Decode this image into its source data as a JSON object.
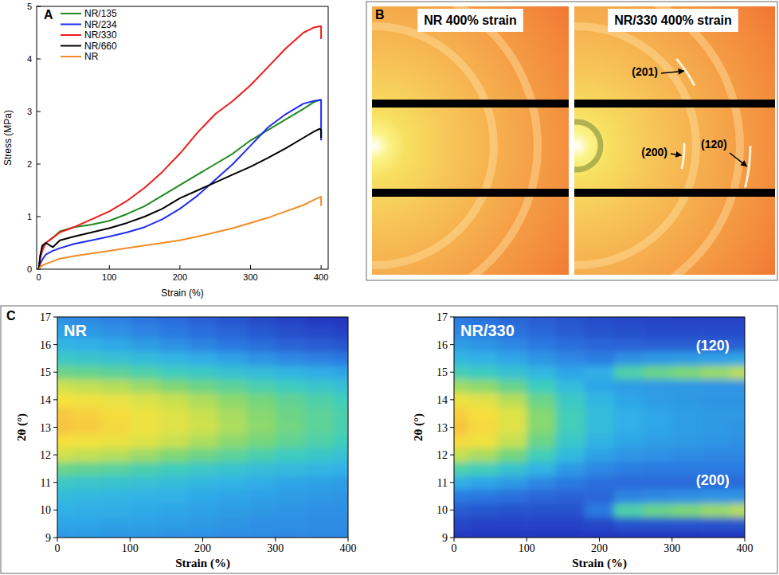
{
  "chart_data": [
    {
      "type": "line",
      "panel_label": "A",
      "x": [
        0,
        2,
        5,
        10,
        20,
        30,
        50,
        75,
        100,
        125,
        150,
        175,
        200,
        225,
        250,
        275,
        300,
        325,
        350,
        375,
        390,
        398,
        400,
        400
      ],
      "xlim": [
        -3,
        410
      ],
      "xticks": [
        0,
        100,
        200,
        300,
        400
      ],
      "ylim": [
        0,
        5
      ],
      "yticks": [
        0,
        1,
        2,
        3,
        4,
        5
      ],
      "x_label": "Strain (%)",
      "y_label": "Stress (MPa)",
      "legend": "upper left",
      "series": [
        {
          "name": "NR/135",
          "color": "#1f8a1f",
          "values": [
            0,
            0.25,
            0.4,
            0.5,
            0.6,
            0.72,
            0.8,
            0.85,
            0.92,
            1.05,
            1.2,
            1.4,
            1.6,
            1.8,
            2.0,
            2.2,
            2.45,
            2.65,
            2.85,
            3.05,
            3.18,
            3.22,
            3.22,
            3.2
          ]
        },
        {
          "name": "NR/234",
          "color": "#1f2cf0",
          "values": [
            0,
            0.1,
            0.18,
            0.28,
            0.35,
            0.4,
            0.48,
            0.55,
            0.62,
            0.7,
            0.8,
            0.95,
            1.15,
            1.4,
            1.7,
            2.0,
            2.35,
            2.7,
            2.95,
            3.15,
            3.2,
            3.22,
            3.22,
            2.45
          ]
        },
        {
          "name": "NR/330",
          "color": "#ee1c1c",
          "values": [
            0,
            0.2,
            0.35,
            0.5,
            0.6,
            0.7,
            0.8,
            0.95,
            1.1,
            1.3,
            1.55,
            1.85,
            2.2,
            2.6,
            2.95,
            3.2,
            3.5,
            3.85,
            4.2,
            4.5,
            4.6,
            4.62,
            4.62,
            4.38
          ]
        },
        {
          "name": "NR/660",
          "color": "#000000",
          "values": [
            0,
            0.25,
            0.45,
            0.5,
            0.42,
            0.55,
            0.62,
            0.7,
            0.78,
            0.88,
            1.0,
            1.15,
            1.35,
            1.5,
            1.65,
            1.8,
            1.95,
            2.12,
            2.3,
            2.5,
            2.62,
            2.67,
            2.65,
            2.5
          ]
        },
        {
          "name": "NR",
          "color": "#f28c28",
          "values": [
            0,
            0.04,
            0.07,
            0.1,
            0.15,
            0.2,
            0.25,
            0.3,
            0.35,
            0.4,
            0.45,
            0.5,
            0.55,
            0.62,
            0.7,
            0.78,
            0.88,
            0.98,
            1.1,
            1.22,
            1.32,
            1.37,
            1.38,
            1.2
          ]
        }
      ]
    },
    {
      "type": "heatmap",
      "panel_label": "C",
      "title": "NR",
      "x": [
        0,
        40,
        80,
        120,
        160,
        200,
        240,
        280,
        320,
        360,
        400
      ],
      "y": [
        9,
        9.5,
        10,
        10.5,
        11,
        11.5,
        12,
        12.5,
        13,
        13.5,
        14,
        14.5,
        15,
        15.5,
        16,
        16.5,
        17
      ],
      "z": [
        [
          0.32,
          0.32,
          0.31,
          0.31,
          0.3,
          0.3,
          0.29,
          0.29,
          0.28,
          0.28,
          0.28
        ],
        [
          0.35,
          0.35,
          0.34,
          0.34,
          0.33,
          0.32,
          0.31,
          0.3,
          0.3,
          0.29,
          0.29
        ],
        [
          0.38,
          0.37,
          0.37,
          0.36,
          0.35,
          0.34,
          0.33,
          0.32,
          0.31,
          0.3,
          0.3
        ],
        [
          0.42,
          0.41,
          0.4,
          0.39,
          0.38,
          0.36,
          0.35,
          0.34,
          0.33,
          0.32,
          0.31
        ],
        [
          0.5,
          0.48,
          0.47,
          0.45,
          0.43,
          0.41,
          0.39,
          0.37,
          0.35,
          0.34,
          0.33
        ],
        [
          0.63,
          0.61,
          0.59,
          0.56,
          0.53,
          0.5,
          0.47,
          0.44,
          0.42,
          0.4,
          0.38
        ],
        [
          0.8,
          0.78,
          0.76,
          0.72,
          0.68,
          0.64,
          0.6,
          0.56,
          0.52,
          0.49,
          0.46
        ],
        [
          0.93,
          0.91,
          0.88,
          0.84,
          0.79,
          0.75,
          0.7,
          0.66,
          0.61,
          0.57,
          0.53
        ],
        [
          1.0,
          0.98,
          0.95,
          0.9,
          0.85,
          0.8,
          0.75,
          0.7,
          0.65,
          0.6,
          0.56
        ],
        [
          0.99,
          0.97,
          0.94,
          0.89,
          0.84,
          0.79,
          0.74,
          0.69,
          0.64,
          0.6,
          0.56
        ],
        [
          0.92,
          0.9,
          0.87,
          0.83,
          0.79,
          0.75,
          0.7,
          0.66,
          0.61,
          0.57,
          0.53
        ],
        [
          0.8,
          0.78,
          0.76,
          0.72,
          0.68,
          0.64,
          0.6,
          0.56,
          0.52,
          0.48,
          0.45
        ],
        [
          0.64,
          0.62,
          0.6,
          0.57,
          0.53,
          0.5,
          0.46,
          0.43,
          0.4,
          0.37,
          0.35
        ],
        [
          0.5,
          0.48,
          0.46,
          0.43,
          0.4,
          0.37,
          0.34,
          0.31,
          0.28,
          0.26,
          0.24
        ],
        [
          0.4,
          0.38,
          0.36,
          0.33,
          0.3,
          0.27,
          0.24,
          0.21,
          0.18,
          0.16,
          0.14
        ],
        [
          0.34,
          0.32,
          0.3,
          0.27,
          0.24,
          0.21,
          0.18,
          0.15,
          0.12,
          0.1,
          0.08
        ],
        [
          0.3,
          0.28,
          0.26,
          0.23,
          0.2,
          0.17,
          0.14,
          0.11,
          0.08,
          0.06,
          0.05
        ]
      ],
      "xlim": [
        0,
        400
      ],
      "xticks": [
        0,
        100,
        200,
        300,
        400
      ],
      "ylim": [
        9,
        17
      ],
      "yticks": [
        9,
        10,
        11,
        12,
        13,
        14,
        15,
        16,
        17
      ],
      "x_label": "Strain (%)",
      "y_label": "2θ (°)"
    },
    {
      "type": "heatmap",
      "title": "NR/330",
      "x": [
        0,
        40,
        80,
        120,
        160,
        200,
        240,
        280,
        320,
        360,
        400
      ],
      "y": [
        9,
        9.5,
        10,
        10.5,
        11,
        11.5,
        12,
        12.5,
        13,
        13.5,
        14,
        14.5,
        15,
        15.5,
        16,
        16.5,
        17
      ],
      "z": [
        [
          0.12,
          0.12,
          0.12,
          0.12,
          0.12,
          0.12,
          0.12,
          0.12,
          0.12,
          0.12,
          0.12
        ],
        [
          0.17,
          0.16,
          0.16,
          0.16,
          0.16,
          0.17,
          0.2,
          0.2,
          0.2,
          0.2,
          0.2
        ],
        [
          0.22,
          0.21,
          0.2,
          0.2,
          0.2,
          0.3,
          0.6,
          0.66,
          0.7,
          0.74,
          0.78
        ],
        [
          0.3,
          0.29,
          0.27,
          0.25,
          0.24,
          0.25,
          0.32,
          0.34,
          0.35,
          0.36,
          0.36
        ],
        [
          0.42,
          0.4,
          0.37,
          0.33,
          0.3,
          0.27,
          0.26,
          0.26,
          0.26,
          0.26,
          0.26
        ],
        [
          0.6,
          0.57,
          0.51,
          0.44,
          0.37,
          0.33,
          0.31,
          0.3,
          0.3,
          0.3,
          0.3
        ],
        [
          0.8,
          0.76,
          0.68,
          0.57,
          0.46,
          0.39,
          0.36,
          0.35,
          0.34,
          0.33,
          0.33
        ],
        [
          0.95,
          0.9,
          0.8,
          0.66,
          0.53,
          0.44,
          0.4,
          0.38,
          0.37,
          0.36,
          0.35
        ],
        [
          1.0,
          0.95,
          0.85,
          0.71,
          0.57,
          0.47,
          0.42,
          0.4,
          0.38,
          0.37,
          0.36
        ],
        [
          0.98,
          0.94,
          0.85,
          0.71,
          0.57,
          0.47,
          0.42,
          0.4,
          0.38,
          0.37,
          0.37
        ],
        [
          0.9,
          0.86,
          0.78,
          0.66,
          0.54,
          0.45,
          0.4,
          0.38,
          0.37,
          0.36,
          0.36
        ],
        [
          0.75,
          0.72,
          0.65,
          0.56,
          0.47,
          0.4,
          0.38,
          0.37,
          0.37,
          0.36,
          0.36
        ],
        [
          0.58,
          0.55,
          0.5,
          0.45,
          0.4,
          0.42,
          0.6,
          0.66,
          0.7,
          0.74,
          0.78
        ],
        [
          0.45,
          0.43,
          0.4,
          0.36,
          0.33,
          0.31,
          0.35,
          0.37,
          0.38,
          0.39,
          0.4
        ],
        [
          0.38,
          0.36,
          0.33,
          0.3,
          0.27,
          0.25,
          0.24,
          0.23,
          0.23,
          0.23,
          0.23
        ],
        [
          0.33,
          0.31,
          0.28,
          0.25,
          0.22,
          0.2,
          0.19,
          0.18,
          0.18,
          0.18,
          0.18
        ],
        [
          0.3,
          0.28,
          0.25,
          0.22,
          0.2,
          0.18,
          0.17,
          0.16,
          0.15,
          0.15,
          0.15
        ]
      ],
      "xlim": [
        0,
        400
      ],
      "xticks": [
        0,
        100,
        200,
        300,
        400
      ],
      "ylim": [
        9,
        17
      ],
      "yticks": [
        9,
        10,
        11,
        12,
        13,
        14,
        15,
        16,
        17
      ],
      "x_label": "Strain (%)",
      "y_label": "2θ (°)",
      "annotations": [
        {
          "text": "(120)",
          "x": 356,
          "y": 16.0
        },
        {
          "text": "(200)",
          "x": 356,
          "y": 11.1
        }
      ]
    }
  ],
  "images": {
    "panel_label": "B",
    "items": [
      {
        "title": "NR 400% strain"
      },
      {
        "title": "NR/330 400% strain",
        "annotations": [
          "(201)",
          "(200)",
          "(120)"
        ]
      }
    ]
  }
}
